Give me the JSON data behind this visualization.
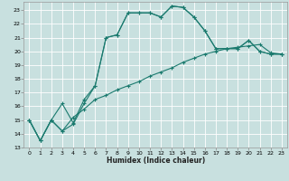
{
  "title": "",
  "xlabel": "Humidex (Indice chaleur)",
  "bg_color": "#c8e0df",
  "grid_color": "#ffffff",
  "line_color": "#1a7a6e",
  "xlim": [
    -0.5,
    23.5
  ],
  "ylim": [
    13,
    23.6
  ],
  "xticks": [
    0,
    1,
    2,
    3,
    4,
    5,
    6,
    7,
    8,
    9,
    10,
    11,
    12,
    13,
    14,
    15,
    16,
    17,
    18,
    19,
    20,
    21,
    22,
    23
  ],
  "yticks": [
    13,
    14,
    15,
    16,
    17,
    18,
    19,
    20,
    21,
    22,
    23
  ],
  "curve1_x": [
    0,
    1,
    2,
    3,
    4,
    5,
    6,
    7,
    8,
    9,
    10,
    11,
    12,
    13,
    14,
    15,
    16,
    17,
    18,
    19,
    20,
    21,
    22,
    23
  ],
  "curve1_y": [
    15.0,
    13.5,
    15.0,
    14.2,
    14.7,
    16.2,
    17.5,
    21.0,
    21.2,
    22.8,
    22.8,
    22.8,
    22.5,
    23.3,
    23.2,
    22.5,
    21.5,
    20.2,
    20.2,
    20.2,
    20.8,
    20.0,
    19.8,
    19.8
  ],
  "curve2_x": [
    0,
    1,
    2,
    3,
    4,
    5,
    6,
    7,
    8,
    9,
    10,
    11,
    12,
    13,
    14,
    15,
    16,
    17,
    18,
    19,
    20,
    21,
    22,
    23
  ],
  "curve2_y": [
    15.0,
    13.5,
    15.0,
    16.2,
    14.8,
    16.5,
    17.5,
    21.0,
    21.2,
    22.8,
    22.8,
    22.8,
    22.5,
    23.3,
    23.2,
    22.5,
    21.5,
    20.2,
    20.2,
    20.2,
    20.8,
    20.0,
    19.8,
    19.8
  ],
  "curve3_x": [
    0,
    1,
    2,
    3,
    4,
    5,
    6,
    7,
    8,
    9,
    10,
    11,
    12,
    13,
    14,
    15,
    16,
    17,
    18,
    19,
    20,
    21,
    22,
    23
  ],
  "curve3_y": [
    15.0,
    13.5,
    15.0,
    14.2,
    15.2,
    15.8,
    16.5,
    16.8,
    17.2,
    17.5,
    17.8,
    18.2,
    18.5,
    18.8,
    19.2,
    19.5,
    19.8,
    20.0,
    20.2,
    20.3,
    20.4,
    20.5,
    19.9,
    19.8
  ]
}
